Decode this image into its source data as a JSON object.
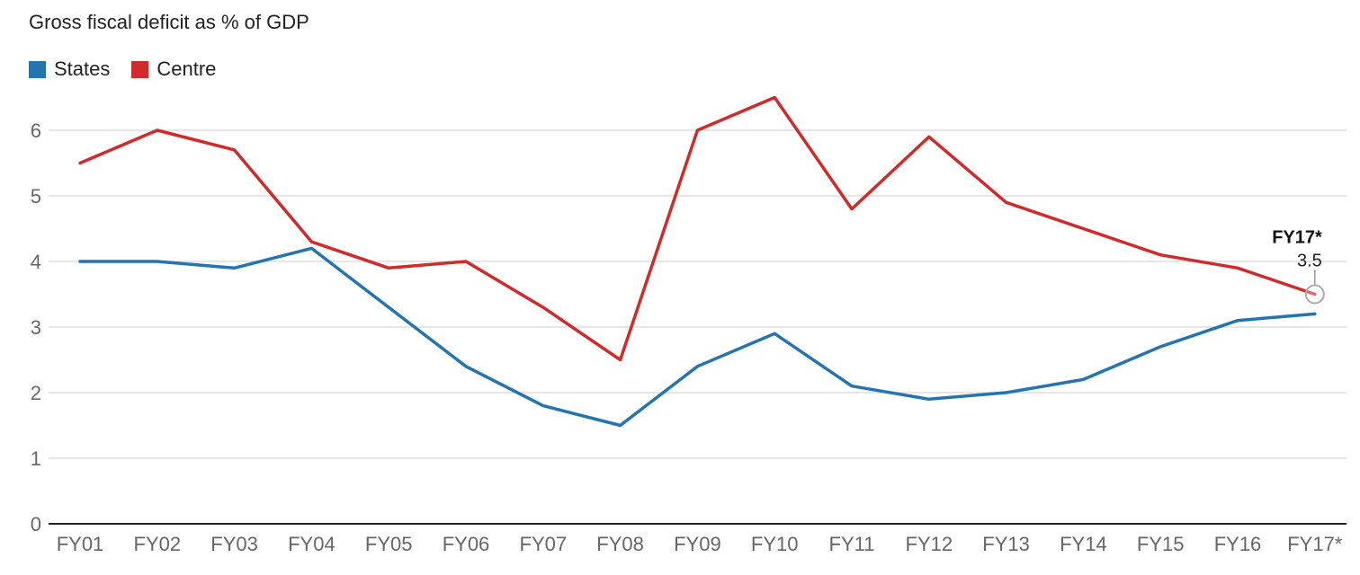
{
  "chart_data": {
    "type": "line",
    "title": "Gross fiscal deficit as % of GDP",
    "categories": [
      "FY01",
      "FY02",
      "FY03",
      "FY04",
      "FY05",
      "FY06",
      "FY07",
      "FY08",
      "FY09",
      "FY10",
      "FY11",
      "FY12",
      "FY13",
      "FY14",
      "FY15",
      "FY16",
      "FY17*"
    ],
    "series": [
      {
        "name": "States",
        "color": "#2374b0",
        "values": [
          4.0,
          4.0,
          3.9,
          4.2,
          3.3,
          2.4,
          1.8,
          1.5,
          2.4,
          2.9,
          2.1,
          1.9,
          2.0,
          2.2,
          2.7,
          3.1,
          3.2
        ]
      },
      {
        "name": "Centre",
        "color": "#d02a2a",
        "values": [
          5.5,
          6.0,
          5.7,
          4.3,
          3.9,
          4.0,
          3.3,
          2.5,
          6.0,
          6.5,
          4.8,
          5.9,
          4.9,
          4.5,
          4.1,
          3.9,
          3.5
        ]
      }
    ],
    "ylim": [
      0,
      6.5
    ],
    "yticks": [
      0,
      1,
      2,
      3,
      4,
      5,
      6
    ],
    "grid": true,
    "legend": "top-left",
    "annotation": {
      "label": "FY17*",
      "value": "3.5",
      "series": "Centre"
    }
  }
}
